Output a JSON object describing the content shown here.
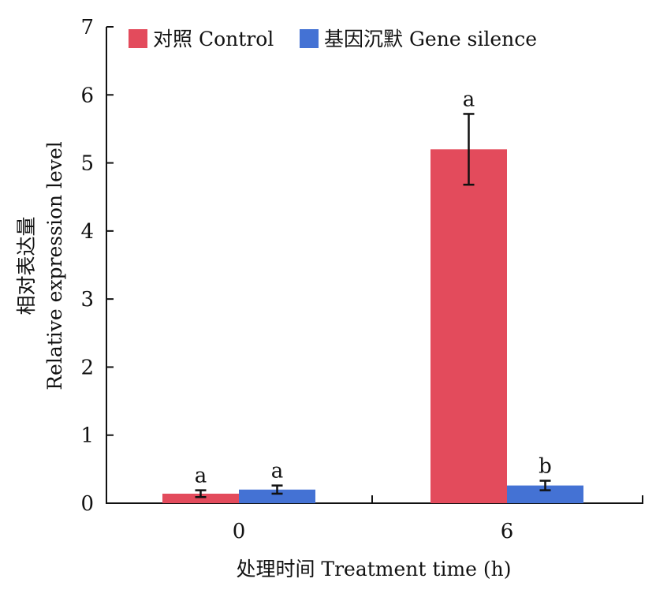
{
  "chart_data": {
    "type": "bar",
    "title": "",
    "categories": [
      "0",
      "6"
    ],
    "series": [
      {
        "name": "对照 Control",
        "color": "#e34b5c",
        "values": [
          0.14,
          5.2
        ],
        "errors": [
          0.05,
          0.52
        ],
        "significance": [
          "a",
          "a"
        ]
      },
      {
        "name": "基因沉默 Gene silence",
        "color": "#4472d4",
        "values": [
          0.2,
          0.26
        ],
        "errors": [
          0.06,
          0.07
        ],
        "significance": [
          "a",
          "b"
        ]
      }
    ],
    "xlabel": "处理时间 Treatment time (h)",
    "ylabel_cn": "相对表达量",
    "ylabel_en": "Relative expression level",
    "ylim": [
      0,
      7
    ],
    "yticks": [
      "0",
      "1",
      "2",
      "3",
      "4",
      "5",
      "6",
      "7"
    ],
    "grid": false,
    "legend_position": "top"
  }
}
